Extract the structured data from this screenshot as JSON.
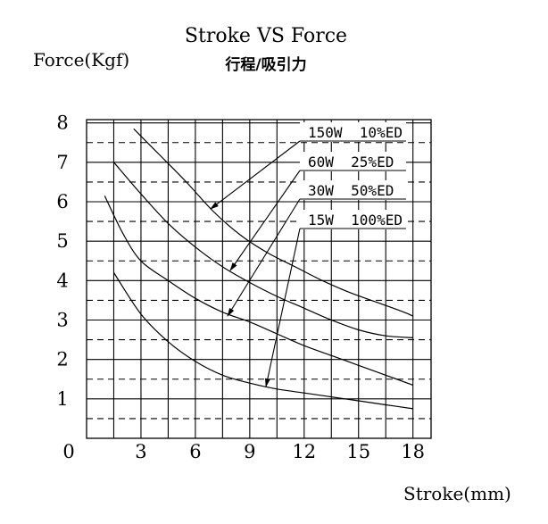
{
  "chart_data": {
    "type": "line",
    "title": "Stroke VS  Force",
    "subtitle": "行程/吸引力",
    "ylabel": "Force(Kgf)",
    "xlabel": "Stroke(mm)",
    "xlim": [
      0,
      18
    ],
    "ylim": [
      0,
      8
    ],
    "x_ticks": [
      0,
      3,
      6,
      9,
      12,
      15,
      18
    ],
    "y_ticks": [
      1,
      2,
      3,
      4,
      5,
      6,
      7,
      8
    ],
    "grid": true,
    "series": [
      {
        "name": "150W  10%ED",
        "x": [
          2.6,
          4,
          5.5,
          7,
          8.5,
          10,
          11.5,
          13,
          14.5,
          16,
          17.5,
          18
        ],
        "y": [
          7.85,
          7.2,
          6.5,
          5.75,
          5.15,
          4.7,
          4.35,
          4.0,
          3.7,
          3.45,
          3.2,
          3.1
        ]
      },
      {
        "name": "60W  25%ED",
        "x": [
          1.5,
          3,
          4.5,
          6,
          7.5,
          9,
          10.5,
          12,
          13.5,
          15,
          16.5,
          18
        ],
        "y": [
          7.0,
          6.2,
          5.45,
          4.85,
          4.35,
          3.95,
          3.6,
          3.3,
          3.0,
          2.75,
          2.6,
          2.55
        ]
      },
      {
        "name": "30W  50%ED",
        "x": [
          1.0,
          2,
          3,
          4.5,
          6,
          7.5,
          9,
          10.5,
          12,
          13.5,
          15,
          16.5,
          18
        ],
        "y": [
          6.15,
          5.2,
          4.5,
          4.0,
          3.55,
          3.2,
          2.95,
          2.65,
          2.35,
          2.1,
          1.85,
          1.6,
          1.35
        ]
      },
      {
        "name": "15W  100%ED",
        "x": [
          1.5,
          3,
          4.5,
          6,
          7.5,
          9,
          10.5,
          12,
          13.5,
          15,
          16.5,
          18
        ],
        "y": [
          4.2,
          3.15,
          2.45,
          1.95,
          1.6,
          1.4,
          1.25,
          1.15,
          1.05,
          0.95,
          0.85,
          0.75
        ]
      }
    ]
  }
}
